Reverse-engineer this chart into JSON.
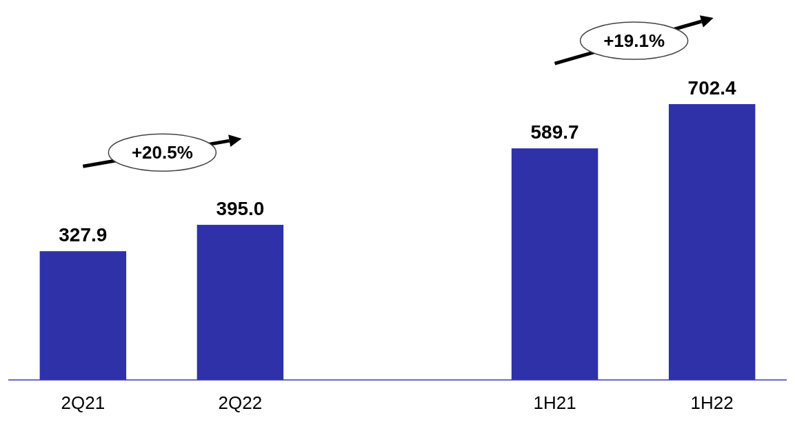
{
  "chart_data": {
    "type": "bar",
    "categories": [
      "2Q21",
      "2Q22",
      null,
      "1H21",
      "1H22"
    ],
    "values": [
      327.9,
      395.0,
      null,
      589.7,
      702.4
    ],
    "value_labels": [
      "327.9",
      "395.0",
      null,
      "589.7",
      "702.4"
    ],
    "color": "#2e31a8",
    "annotations": [
      "+20.5%",
      "+19.1%"
    ]
  }
}
